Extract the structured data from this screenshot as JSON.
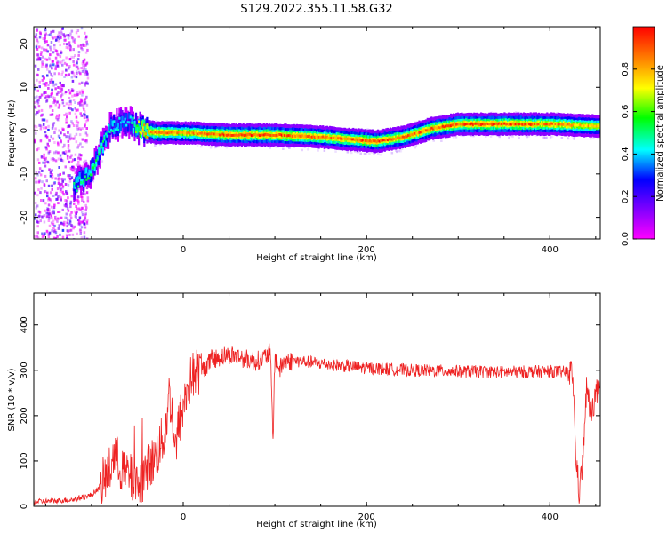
{
  "title": "S129.2022.355.11.58.G32",
  "chart_data": [
    {
      "type": "heatmap",
      "xlabel": "Height of straight line (km)",
      "ylabel": "Frequency (Hz)",
      "xlim": [
        -163,
        455
      ],
      "ylim": [
        -25,
        24
      ],
      "x_ticks": [
        0,
        200,
        400
      ],
      "y_ticks": [
        -20,
        -10,
        0,
        10,
        20
      ],
      "colorbar": {
        "label": "Normalized spectral amplitude",
        "range": [
          0,
          1
        ],
        "ticks": [
          "0.0",
          "0.2",
          "0.4",
          "0.6",
          "0.8"
        ],
        "colormap": [
          "#ff00ff",
          "#8000ff",
          "#0000ff",
          "#00ffff",
          "#00ff00",
          "#ffff00",
          "#ff8000",
          "#ff0000"
        ]
      },
      "ridge": {
        "description": "frequency of the peak spectral amplitude vs height",
        "x": [
          -120,
          -100,
          -80,
          -60,
          -45,
          -30,
          0,
          50,
          100,
          150,
          180,
          210,
          240,
          270,
          300,
          350,
          400,
          455
        ],
        "y": [
          -13,
          -9,
          1,
          2,
          0,
          -0.5,
          -0.5,
          -1,
          -1,
          -1.5,
          -2,
          -2.5,
          -1.5,
          0.5,
          1.5,
          1.5,
          1.5,
          1
        ]
      },
      "peak_amplitude": {
        "x": [
          -120,
          -100,
          -80,
          -60,
          -45,
          -30,
          0,
          50,
          100,
          150,
          200,
          250,
          300,
          350,
          400,
          455
        ],
        "y": [
          0.5,
          0.55,
          0.5,
          0.4,
          0.85,
          0.9,
          0.85,
          0.95,
          0.95,
          0.9,
          0.95,
          0.9,
          0.95,
          0.95,
          0.9,
          0.8
        ]
      }
    },
    {
      "type": "line",
      "xlabel": "Height of straight line (km)",
      "ylabel": "SNR (10 * v/v)",
      "xlim": [
        -163,
        455
      ],
      "ylim": [
        0,
        470
      ],
      "x_ticks": [
        0,
        200,
        400
      ],
      "y_ticks": [
        0,
        100,
        200,
        300,
        400
      ],
      "color": "#ee2222",
      "series": [
        {
          "x": [
            -163,
            -140,
            -120,
            -100,
            -90,
            -80,
            -75,
            -70,
            -60,
            -50,
            -45,
            -40,
            -30,
            -20,
            -15,
            -12,
            -8,
            -5,
            0,
            5,
            10,
            20,
            30,
            40,
            50,
            60,
            70,
            80,
            90,
            95,
            98,
            100,
            102,
            105,
            110,
            130,
            150,
            200,
            250,
            300,
            350,
            400,
            425,
            428,
            432,
            436,
            440,
            445,
            450,
            455
          ],
          "y": [
            10,
            12,
            15,
            25,
            45,
            80,
            120,
            90,
            70,
            40,
            60,
            80,
            110,
            160,
            250,
            200,
            120,
            180,
            220,
            260,
            290,
            300,
            320,
            330,
            335,
            330,
            325,
            320,
            330,
            340,
            150,
            330,
            320,
            300,
            320,
            320,
            315,
            305,
            300,
            298,
            296,
            298,
            295,
            120,
            30,
            100,
            260,
            200,
            250,
            250
          ]
        }
      ]
    }
  ]
}
